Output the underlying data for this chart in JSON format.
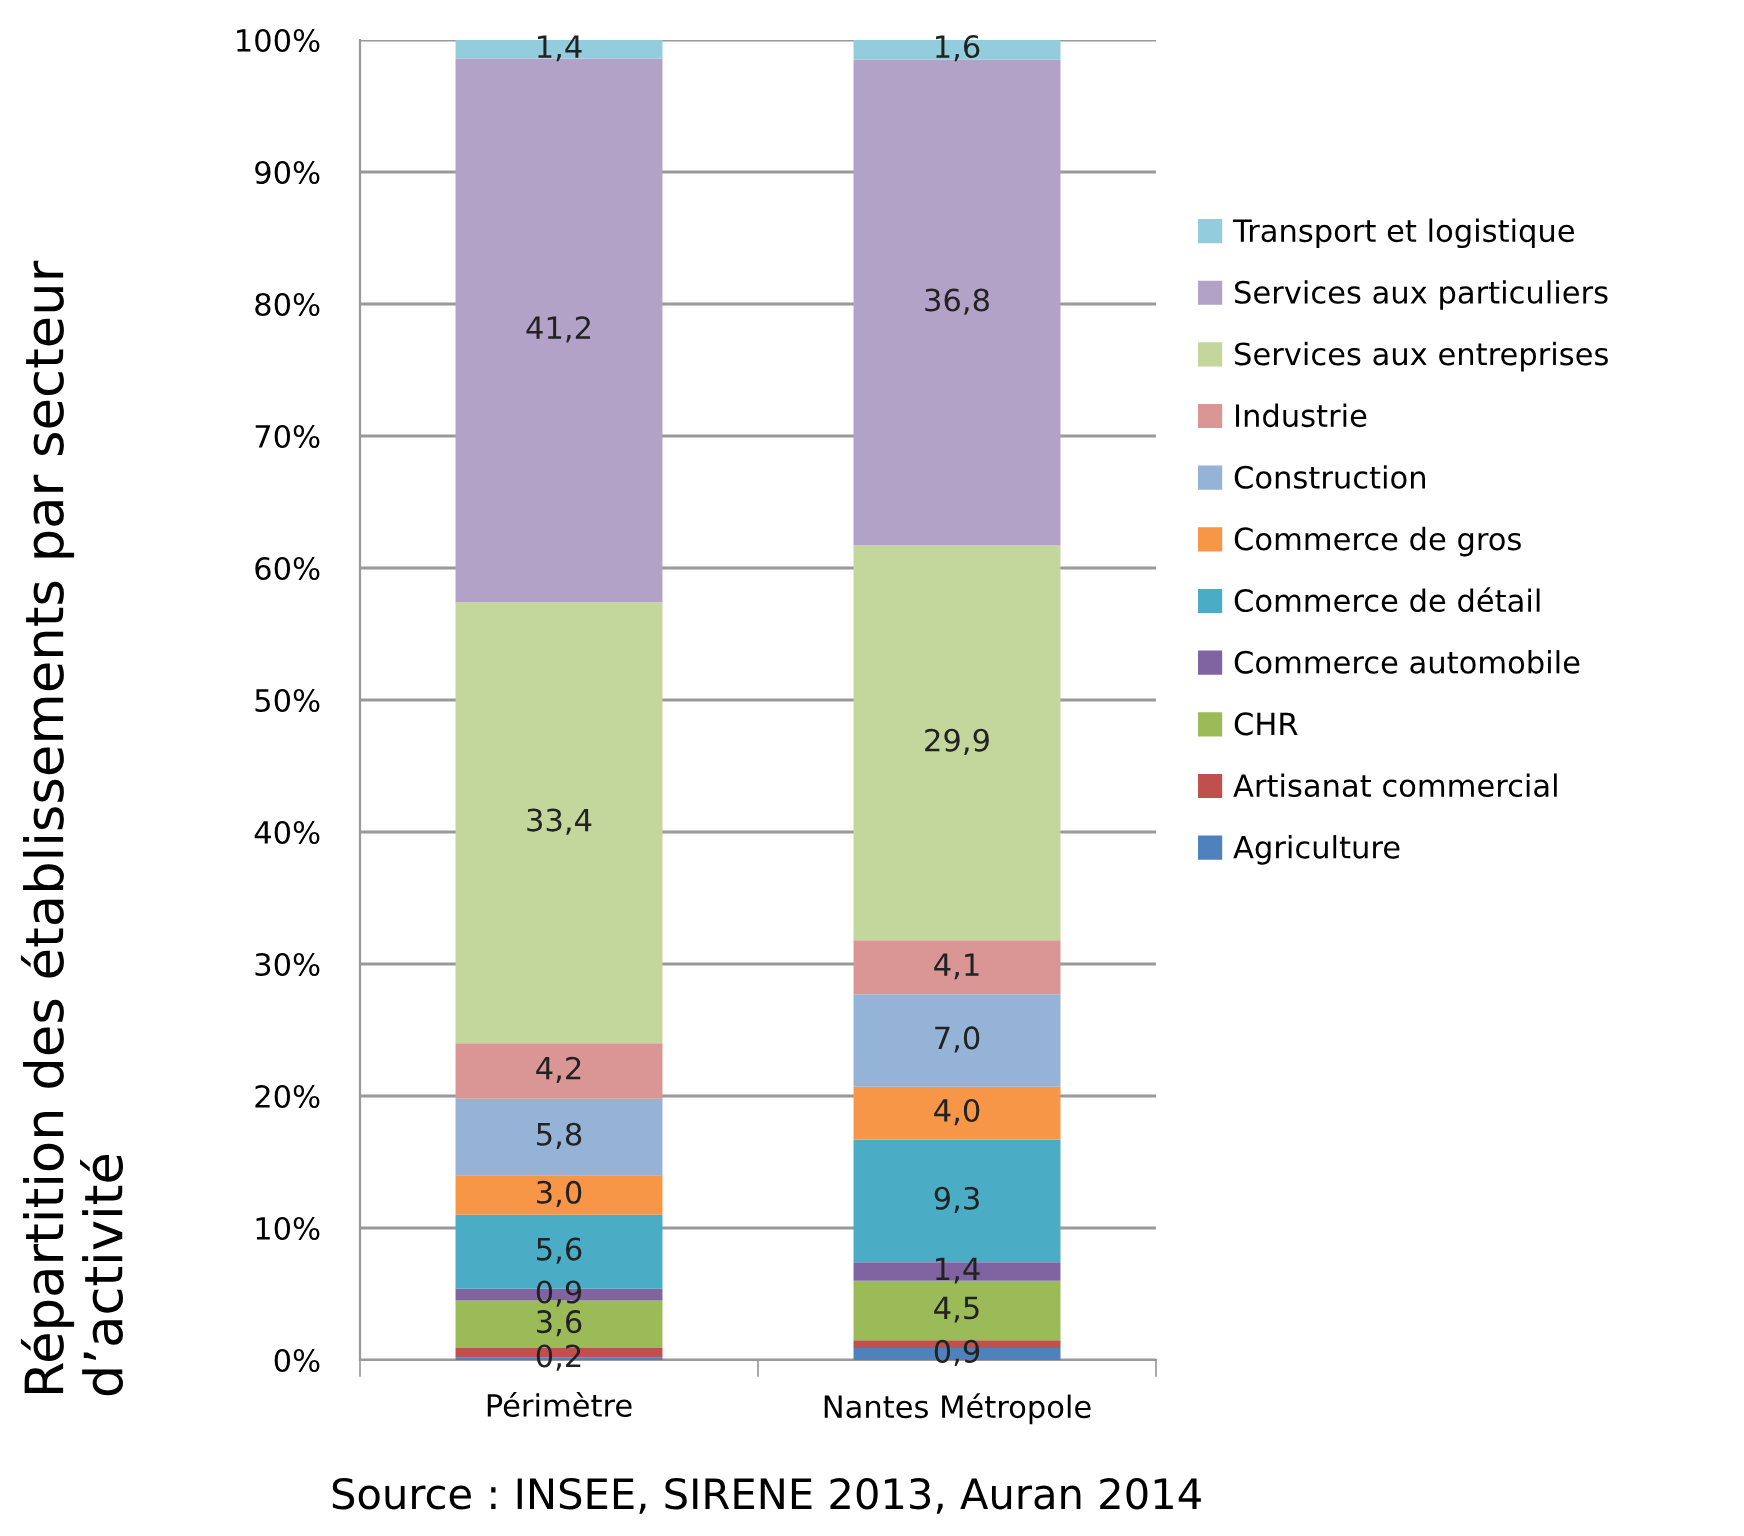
{
  "chart_data": {
    "type": "bar",
    "stacked": true,
    "categories": [
      "Périmètre",
      "Nantes Métropole"
    ],
    "ylabel": "Répartition des établissements par secteur\nd’activité",
    "annotations": [
      "Source : INSEE, SIRENE 2013, Auran 2014"
    ],
    "ylim": [
      0,
      100
    ],
    "yticks": [
      {
        "value": 0,
        "label": "0%"
      },
      {
        "value": 10,
        "label": "10%"
      },
      {
        "value": 20,
        "label": "20%"
      },
      {
        "value": 30,
        "label": "30%"
      },
      {
        "value": 40,
        "label": "40%"
      },
      {
        "value": 50,
        "label": "50%"
      },
      {
        "value": 60,
        "label": "60%"
      },
      {
        "value": 70,
        "label": "70%"
      },
      {
        "value": 80,
        "label": "80%"
      },
      {
        "value": 90,
        "label": "90%"
      },
      {
        "value": 100,
        "label": "100%"
      }
    ],
    "grid": "y",
    "legend": "right",
    "series": [
      {
        "name": "Agriculture",
        "color": "#4f81bd",
        "values": [
          0.2,
          0.9
        ],
        "value_labels": [
          "0,2",
          "0,9"
        ]
      },
      {
        "name": "Artisanat commercial",
        "color": "#c0504d",
        "values": [
          0.7,
          0.6
        ],
        "value_labels": [
          null,
          null
        ]
      },
      {
        "name": "CHR",
        "color": "#9bbb59",
        "values": [
          3.6,
          4.5
        ],
        "value_labels": [
          "3,6",
          "4,5"
        ]
      },
      {
        "name": "Commerce automobile",
        "color": "#8064a2",
        "values": [
          0.9,
          1.4
        ],
        "value_labels": [
          "0,9",
          "1,4"
        ]
      },
      {
        "name": "Commerce de détail",
        "color": "#4bacc6",
        "values": [
          5.6,
          9.3
        ],
        "value_labels": [
          "5,6",
          "9,3"
        ]
      },
      {
        "name": "Commerce de gros",
        "color": "#f79646",
        "values": [
          3.0,
          4.0
        ],
        "value_labels": [
          "3,0",
          "4,0"
        ]
      },
      {
        "name": "Construction",
        "color": "#95b3d7",
        "values": [
          5.8,
          7.0
        ],
        "value_labels": [
          "5,8",
          "7,0"
        ]
      },
      {
        "name": "Industrie",
        "color": "#d99694",
        "values": [
          4.2,
          4.1
        ],
        "value_labels": [
          "4,2",
          "4,1"
        ]
      },
      {
        "name": "Services aux entreprises",
        "color": "#c3d69b",
        "values": [
          33.4,
          29.9
        ],
        "value_labels": [
          "33,4",
          "29,9"
        ]
      },
      {
        "name": "Services aux particuliers",
        "color": "#b3a2c7",
        "values": [
          41.2,
          36.8
        ],
        "value_labels": [
          "41,2",
          "36,8"
        ]
      },
      {
        "name": "Transport et logistique",
        "color": "#93cddd",
        "values": [
          1.4,
          1.6
        ],
        "value_labels": [
          "1,4",
          "1,6"
        ]
      }
    ]
  }
}
